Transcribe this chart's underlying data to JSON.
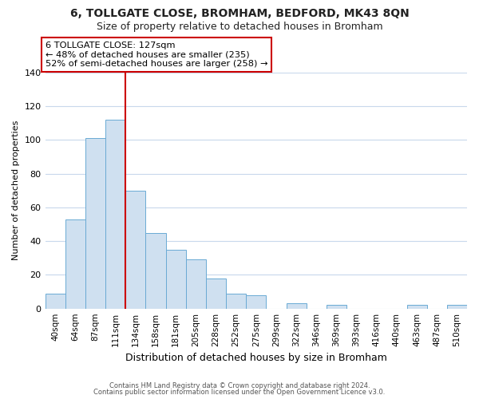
{
  "title": "6, TOLLGATE CLOSE, BROMHAM, BEDFORD, MK43 8QN",
  "subtitle": "Size of property relative to detached houses in Bromham",
  "xlabel": "Distribution of detached houses by size in Bromham",
  "ylabel": "Number of detached properties",
  "bar_labels": [
    "40sqm",
    "64sqm",
    "87sqm",
    "111sqm",
    "134sqm",
    "158sqm",
    "181sqm",
    "205sqm",
    "228sqm",
    "252sqm",
    "275sqm",
    "299sqm",
    "322sqm",
    "346sqm",
    "369sqm",
    "393sqm",
    "416sqm",
    "440sqm",
    "463sqm",
    "487sqm",
    "510sqm"
  ],
  "bar_values": [
    9,
    53,
    101,
    112,
    70,
    45,
    35,
    29,
    18,
    9,
    8,
    0,
    3,
    0,
    2,
    0,
    0,
    0,
    2,
    0,
    2
  ],
  "bar_color": "#cfe0f0",
  "bar_edge_color": "#6aaad4",
  "vline_x_index": 3.5,
  "vline_color": "#cc0000",
  "annotation_text": "6 TOLLGATE CLOSE: 127sqm\n← 48% of detached houses are smaller (235)\n52% of semi-detached houses are larger (258) →",
  "annotation_box_color": "#ffffff",
  "annotation_box_edge": "#cc0000",
  "ylim": [
    0,
    140
  ],
  "yticks": [
    0,
    20,
    40,
    60,
    80,
    100,
    120,
    140
  ],
  "footer_line1": "Contains HM Land Registry data © Crown copyright and database right 2024.",
  "footer_line2": "Contains public sector information licensed under the Open Government Licence v3.0.",
  "background_color": "#ffffff",
  "grid_color": "#c8d8ec",
  "title_fontsize": 10,
  "subtitle_fontsize": 9,
  "ylabel_fontsize": 8,
  "xlabel_fontsize": 9
}
